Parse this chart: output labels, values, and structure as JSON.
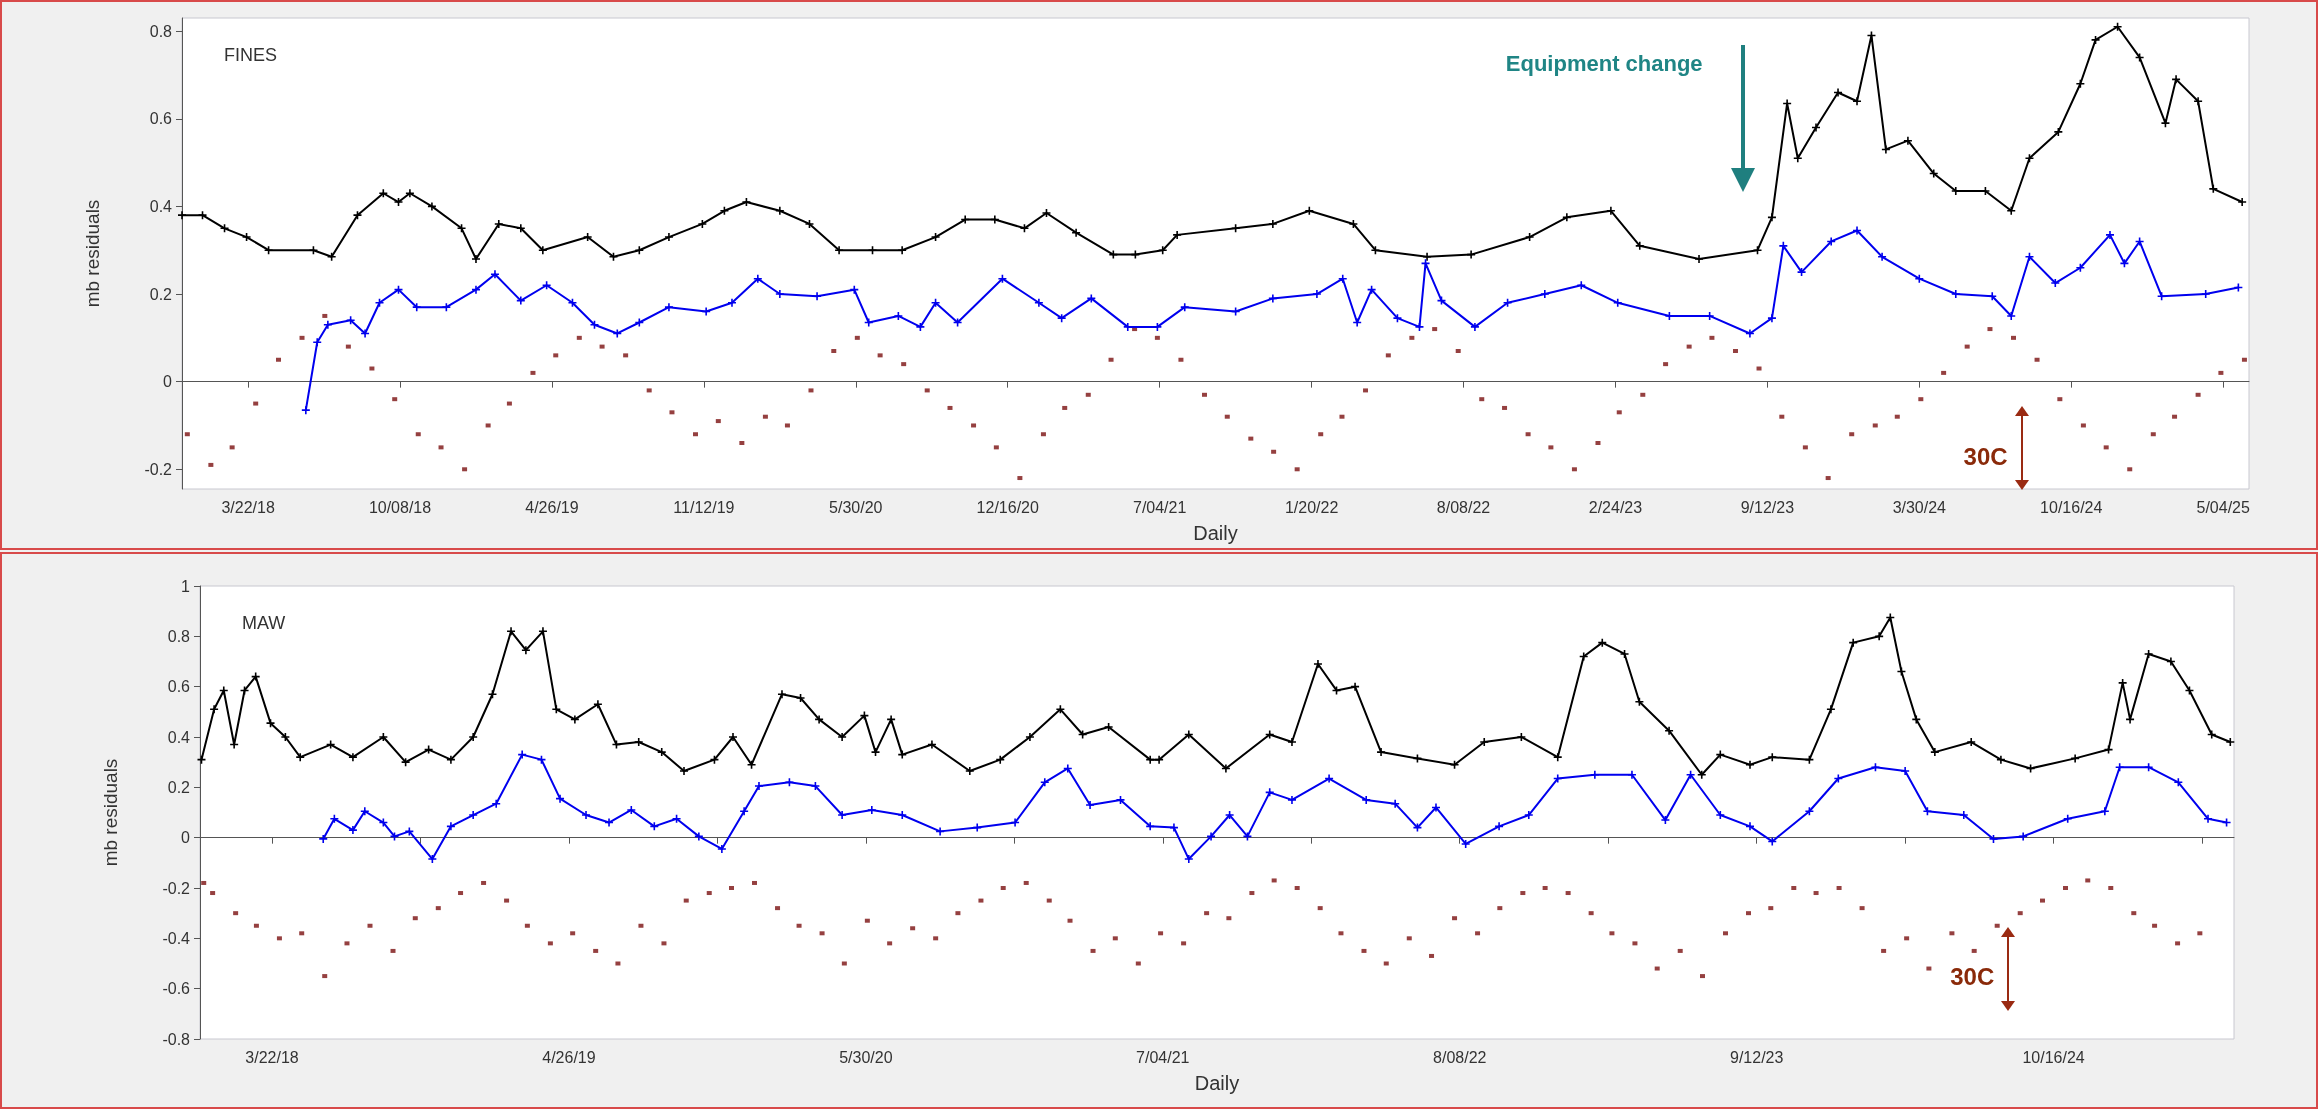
{
  "chart_data": [
    {
      "type": "line",
      "xlabel": "Daily",
      "ylabel": "mb residuals",
      "annotations": [
        "FINES",
        "Equipment change",
        "30C"
      ],
      "xlim": [
        "2017-12-25",
        "2025-06-07"
      ],
      "ylim": [
        -0.245,
        0.83
      ],
      "xticks": [
        {
          "value": "2018-03-22",
          "label": "3/22/18"
        },
        {
          "value": "2018-10-08",
          "label": "10/08/18"
        },
        {
          "value": "2019-04-26",
          "label": "4/26/19"
        },
        {
          "value": "2019-11-12",
          "label": "11/12/19"
        },
        {
          "value": "2020-05-30",
          "label": "5/30/20"
        },
        {
          "value": "2020-12-16",
          "label": "12/16/20"
        },
        {
          "value": "2021-07-04",
          "label": "7/04/21"
        },
        {
          "value": "2022-01-20",
          "label": "1/20/22"
        },
        {
          "value": "2022-08-08",
          "label": "8/08/22"
        },
        {
          "value": "2023-02-24",
          "label": "2/24/23"
        },
        {
          "value": "2023-09-12",
          "label": "9/12/23"
        },
        {
          "value": "2024-03-30",
          "label": "3/30/24"
        },
        {
          "value": "2024-10-16",
          "label": "10/16/24"
        },
        {
          "value": "2025-05-04",
          "label": "5/04/25"
        }
      ],
      "yticks": [
        -0.2,
        0,
        0.2,
        0.4,
        0.6,
        0.8
      ],
      "series": [
        {
          "marker": "cross",
          "color": "#000000",
          "x": [
            "2017-12-25",
            "2018-01-21",
            "2018-02-19",
            "2018-03-20",
            "2018-04-18",
            "2018-06-16",
            "2018-07-10",
            "2018-08-13",
            "2018-09-16",
            "2018-10-06",
            "2018-10-21",
            "2018-11-19",
            "2018-12-28",
            "2019-01-16",
            "2019-02-15",
            "2019-03-16",
            "2019-04-14",
            "2019-06-12",
            "2019-07-16",
            "2019-08-19",
            "2019-09-27",
            "2019-11-10",
            "2019-12-09",
            "2020-01-07",
            "2020-02-20",
            "2020-03-30",
            "2020-05-08",
            "2020-06-21",
            "2020-07-30",
            "2020-09-12",
            "2020-10-21",
            "2020-11-29",
            "2021-01-07",
            "2021-02-05",
            "2021-03-16",
            "2021-05-04",
            "2021-06-02",
            "2021-07-08",
            "2021-07-27",
            "2021-10-12",
            "2021-11-30",
            "2022-01-17",
            "2022-03-16",
            "2022-04-14",
            "2022-06-21",
            "2022-08-18",
            "2022-11-03",
            "2022-12-22",
            "2023-02-18",
            "2023-03-28",
            "2023-06-14",
            "2023-08-30",
            "2023-09-18",
            "2023-10-08",
            "2023-10-22",
            "2023-11-15",
            "2023-12-14",
            "2024-01-08",
            "2024-01-27",
            "2024-02-15",
            "2024-03-15",
            "2024-04-18",
            "2024-05-17",
            "2024-06-25",
            "2024-07-29",
            "2024-08-22",
            "2024-09-29",
            "2024-10-28",
            "2024-11-17",
            "2024-12-16",
            "2025-01-14",
            "2025-02-17",
            "2025-03-03",
            "2025-04-01",
            "2025-04-21",
            "2025-05-29"
          ],
          "values": [
            0.38,
            0.38,
            0.35,
            0.33,
            0.3,
            0.3,
            0.285,
            0.38,
            0.43,
            0.41,
            0.43,
            0.4,
            0.35,
            0.28,
            0.36,
            0.35,
            0.3,
            0.33,
            0.285,
            0.3,
            0.33,
            0.36,
            0.39,
            0.41,
            0.39,
            0.36,
            0.3,
            0.3,
            0.3,
            0.33,
            0.37,
            0.37,
            0.35,
            0.385,
            0.34,
            0.29,
            0.29,
            0.3,
            0.335,
            0.35,
            0.36,
            0.39,
            0.36,
            0.3,
            0.285,
            0.29,
            0.33,
            0.375,
            0.39,
            0.31,
            0.28,
            0.3,
            0.375,
            0.635,
            0.51,
            0.58,
            0.66,
            0.64,
            0.79,
            0.53,
            0.55,
            0.475,
            0.435,
            0.435,
            0.39,
            0.51,
            0.57,
            0.68,
            0.78,
            0.81,
            0.74,
            0.59,
            0.69,
            0.64,
            0.44,
            0.41
          ]
        },
        {
          "marker": "cross",
          "color": "#0000ee",
          "x": [
            "2018-06-06",
            "2018-06-21",
            "2018-07-05",
            "2018-08-04",
            "2018-08-23",
            "2018-09-11",
            "2018-10-06",
            "2018-10-30",
            "2018-12-08",
            "2019-01-16",
            "2019-02-10",
            "2019-03-16",
            "2019-04-19",
            "2019-05-23",
            "2019-06-21",
            "2019-07-21",
            "2019-08-19",
            "2019-09-27",
            "2019-11-15",
            "2019-12-19",
            "2020-01-22",
            "2020-02-20",
            "2020-04-09",
            "2020-05-28",
            "2020-06-16",
            "2020-07-25",
            "2020-08-23",
            "2020-09-12",
            "2020-10-11",
            "2020-12-09",
            "2021-01-26",
            "2021-02-25",
            "2021-04-05",
            "2021-05-23",
            "2021-07-01",
            "2021-08-06",
            "2021-10-12",
            "2021-11-30",
            "2022-01-27",
            "2022-03-02",
            "2022-03-21",
            "2022-04-09",
            "2022-05-13",
            "2022-06-11",
            "2022-06-19",
            "2022-07-10",
            "2022-08-23",
            "2022-10-05",
            "2022-11-23",
            "2023-01-10",
            "2023-02-27",
            "2023-05-06",
            "2023-06-28",
            "2023-08-20",
            "2023-09-18",
            "2023-10-03",
            "2023-10-27",
            "2023-12-05",
            "2024-01-08",
            "2024-02-10",
            "2024-03-30",
            "2024-05-17",
            "2024-07-04",
            "2024-07-29",
            "2024-08-22",
            "2024-09-25",
            "2024-10-28",
            "2024-12-06",
            "2024-12-25",
            "2025-01-14",
            "2025-02-12",
            "2025-04-11",
            "2025-05-24"
          ],
          "values": [
            -0.065,
            0.09,
            0.13,
            0.14,
            0.11,
            0.18,
            0.21,
            0.17,
            0.17,
            0.21,
            0.245,
            0.185,
            0.22,
            0.18,
            0.13,
            0.11,
            0.135,
            0.17,
            0.16,
            0.18,
            0.235,
            0.2,
            0.195,
            0.21,
            0.135,
            0.15,
            0.125,
            0.18,
            0.135,
            0.235,
            0.18,
            0.145,
            0.19,
            0.125,
            0.125,
            0.17,
            0.16,
            0.19,
            0.2,
            0.235,
            0.135,
            0.21,
            0.145,
            0.125,
            0.27,
            0.185,
            0.125,
            0.18,
            0.2,
            0.22,
            0.18,
            0.15,
            0.15,
            0.11,
            0.145,
            0.31,
            0.25,
            0.32,
            0.345,
            0.285,
            0.235,
            0.2,
            0.195,
            0.15,
            0.285,
            0.225,
            0.26,
            0.335,
            0.27,
            0.32,
            0.195,
            0.2,
            0.215
          ]
        },
        {
          "type": "scatter",
          "marker": "square",
          "color": "#7a1010",
          "x": [
            "2018-01-01",
            "2018-02-01",
            "2018-03-01",
            "2018-04-01",
            "2018-05-01",
            "2018-06-01",
            "2018-07-01",
            "2018-08-01",
            "2018-09-01",
            "2018-10-01",
            "2018-11-01",
            "2018-12-01",
            "2019-01-01",
            "2019-02-01",
            "2019-03-01",
            "2019-04-01",
            "2019-05-01",
            "2019-06-01",
            "2019-07-01",
            "2019-08-01",
            "2019-09-01",
            "2019-10-01",
            "2019-11-01",
            "2019-12-01",
            "2020-01-01",
            "2020-02-01",
            "2020-03-01",
            "2020-04-01",
            "2020-05-01",
            "2020-06-01",
            "2020-07-01",
            "2020-08-01",
            "2020-09-01",
            "2020-10-01",
            "2020-11-01",
            "2020-12-01",
            "2021-01-01",
            "2021-02-01",
            "2021-03-01",
            "2021-04-01",
            "2021-05-01",
            "2021-06-01",
            "2021-07-01",
            "2021-08-01",
            "2021-09-01",
            "2021-10-01",
            "2021-11-01",
            "2021-12-01",
            "2022-01-01",
            "2022-02-01",
            "2022-03-01",
            "2022-04-01",
            "2022-05-01",
            "2022-06-01",
            "2022-07-01",
            "2022-08-01",
            "2022-09-01",
            "2022-10-01",
            "2022-11-01",
            "2022-12-01",
            "2023-01-01",
            "2023-02-01",
            "2023-03-01",
            "2023-04-01",
            "2023-05-01",
            "2023-06-01",
            "2023-07-01",
            "2023-08-01",
            "2023-09-01",
            "2023-10-01",
            "2023-11-01",
            "2023-12-01",
            "2024-01-01",
            "2024-02-01",
            "2024-03-01",
            "2024-04-01",
            "2024-05-01",
            "2024-06-01",
            "2024-07-01",
            "2024-08-01",
            "2024-09-01",
            "2024-10-01",
            "2024-11-01",
            "2024-12-01",
            "2025-01-01",
            "2025-02-01",
            "2025-03-01",
            "2025-04-01",
            "2025-05-01",
            "2025-06-01"
          ],
          "values": [
            -0.12,
            -0.19,
            -0.15,
            -0.05,
            0.05,
            0.1,
            0.15,
            0.08,
            0.03,
            -0.04,
            -0.12,
            -0.15,
            -0.2,
            -0.1,
            -0.05,
            0.02,
            0.06,
            0.1,
            0.08,
            0.06,
            -0.02,
            -0.07,
            -0.12,
            -0.09,
            -0.14,
            -0.08,
            -0.1,
            -0.02,
            0.07,
            0.1,
            0.06,
            0.04,
            -0.02,
            -0.06,
            -0.1,
            -0.15,
            -0.22,
            -0.12,
            -0.06,
            -0.03,
            0.05,
            0.12,
            0.1,
            0.05,
            -0.03,
            -0.08,
            -0.13,
            -0.16,
            -0.2,
            -0.12,
            -0.08,
            -0.02,
            0.06,
            0.1,
            0.12,
            0.07,
            -0.04,
            -0.06,
            -0.12,
            -0.15,
            -0.2,
            -0.14,
            -0.07,
            -0.03,
            0.04,
            0.08,
            0.1,
            0.07,
            0.03,
            -0.08,
            -0.15,
            -0.22,
            -0.12,
            -0.1,
            -0.08,
            -0.04,
            0.02,
            0.08,
            0.12,
            0.1,
            0.05,
            -0.04,
            -0.1,
            -0.15,
            -0.2,
            -0.12,
            -0.08,
            -0.03,
            0.02,
            0.05
          ]
        }
      ]
    },
    {
      "type": "line",
      "xlabel": "Daily",
      "ylabel": "mb residuals",
      "annotations": [
        "MAW",
        "30C"
      ],
      "xlim": [
        "2017-12-15",
        "2025-06-16"
      ],
      "ylim": [
        -0.8,
        1
      ],
      "xticks": [
        {
          "value": "2018-03-22",
          "label": "3/22/18"
        },
        {
          "value": "2018-10-08",
          "label": null
        },
        {
          "value": "2019-04-26",
          "label": "4/26/19"
        },
        {
          "value": "2019-11-12",
          "label": null
        },
        {
          "value": "2020-05-30",
          "label": "5/30/20"
        },
        {
          "value": "2020-12-16",
          "label": null
        },
        {
          "value": "2021-07-04",
          "label": "7/04/21"
        },
        {
          "value": "2022-01-20",
          "label": null
        },
        {
          "value": "2022-08-08",
          "label": "8/08/22"
        },
        {
          "value": "2023-02-24",
          "label": null
        },
        {
          "value": "2023-09-12",
          "label": "9/12/23"
        },
        {
          "value": "2024-03-30",
          "label": null
        },
        {
          "value": "2024-10-16",
          "label": "10/16/24"
        },
        {
          "value": "2025-05-04",
          "label": null
        }
      ],
      "yticks": [
        -0.8,
        -0.6,
        -0.4,
        -0.2,
        0,
        0.2,
        0.4,
        0.6,
        0.8,
        1
      ],
      "series": [
        {
          "marker": "cross",
          "color": "#000000",
          "x": [
            "2017-12-17",
            "2018-01-03",
            "2018-01-16",
            "2018-01-30",
            "2018-02-13",
            "2018-02-28",
            "2018-03-20",
            "2018-04-09",
            "2018-04-29",
            "2018-06-09",
            "2018-07-09",
            "2018-08-19",
            "2018-09-18",
            "2018-10-19",
            "2018-11-18",
            "2018-12-18",
            "2019-01-13",
            "2019-02-07",
            "2019-02-27",
            "2019-03-22",
            "2019-04-09",
            "2019-05-04",
            "2019-06-04",
            "2019-06-29",
            "2019-07-29",
            "2019-08-29",
            "2019-09-28",
            "2019-11-08",
            "2019-12-03",
            "2019-12-28",
            "2020-02-07",
            "2020-03-03",
            "2020-03-28",
            "2020-04-28",
            "2020-05-28",
            "2020-06-12",
            "2020-07-03",
            "2020-07-18",
            "2020-08-27",
            "2020-10-17",
            "2020-11-27",
            "2021-01-06",
            "2021-02-16",
            "2021-03-18",
            "2021-04-22",
            "2021-06-17",
            "2021-06-29",
            "2021-08-08",
            "2021-09-27",
            "2021-11-25",
            "2021-12-25",
            "2022-01-29",
            "2022-02-23",
            "2022-03-20",
            "2022-04-24",
            "2022-06-12",
            "2022-08-01",
            "2022-09-10",
            "2022-10-30",
            "2022-12-18",
            "2023-01-22",
            "2023-02-16",
            "2023-03-18",
            "2023-04-07",
            "2023-05-17",
            "2023-06-30",
            "2023-07-25",
            "2023-09-03",
            "2023-10-03",
            "2023-11-22",
            "2023-12-21",
            "2024-01-20",
            "2024-02-24",
            "2024-03-10",
            "2024-03-25",
            "2024-04-14",
            "2024-05-09",
            "2024-06-27",
            "2024-08-06",
            "2024-09-15",
            "2024-11-14",
            "2024-12-29",
            "2025-01-17",
            "2025-01-27",
            "2025-02-21",
            "2025-03-23",
            "2025-04-17",
            "2025-05-17",
            "2025-06-11"
          ],
          "values": [
            0.31,
            0.51,
            0.585,
            0.37,
            0.585,
            0.64,
            0.455,
            0.4,
            0.32,
            0.37,
            0.32,
            0.4,
            0.3,
            0.35,
            0.31,
            0.4,
            0.57,
            0.82,
            0.745,
            0.82,
            0.51,
            0.47,
            0.53,
            0.37,
            0.38,
            0.34,
            0.265,
            0.31,
            0.4,
            0.29,
            0.57,
            0.555,
            0.47,
            0.4,
            0.485,
            0.34,
            0.47,
            0.33,
            0.37,
            0.265,
            0.31,
            0.4,
            0.51,
            0.41,
            0.44,
            0.31,
            0.31,
            0.41,
            0.275,
            0.41,
            0.38,
            0.69,
            0.585,
            0.6,
            0.34,
            0.315,
            0.29,
            0.38,
            0.4,
            0.32,
            0.72,
            0.775,
            0.73,
            0.54,
            0.425,
            0.25,
            0.33,
            0.29,
            0.32,
            0.31,
            0.51,
            0.775,
            0.8,
            0.875,
            0.66,
            0.47,
            0.34,
            0.38,
            0.31,
            0.275,
            0.315,
            0.35,
            0.615,
            0.47,
            0.73,
            0.7,
            0.585,
            0.41,
            0.38
          ]
        },
        {
          "marker": "cross",
          "color": "#0000ee",
          "x": [
            "2018-05-30",
            "2018-06-14",
            "2018-07-09",
            "2018-07-25",
            "2018-08-19",
            "2018-09-03",
            "2018-09-23",
            "2018-10-24",
            "2018-11-18",
            "2018-12-18",
            "2019-01-18",
            "2019-02-22",
            "2019-03-20",
            "2019-04-14",
            "2019-05-19",
            "2019-06-19",
            "2019-07-19",
            "2019-08-19",
            "2019-09-18",
            "2019-10-18",
            "2019-11-18",
            "2019-12-18",
            "2020-01-07",
            "2020-02-17",
            "2020-03-23",
            "2020-04-28",
            "2020-06-07",
            "2020-07-18",
            "2020-09-07",
            "2020-10-27",
            "2020-12-17",
            "2021-01-26",
            "2021-02-26",
            "2021-03-28",
            "2021-05-08",
            "2021-06-17",
            "2021-07-19",
            "2021-08-08",
            "2021-09-07",
            "2021-10-02",
            "2021-10-26",
            "2021-11-25",
            "2021-12-25",
            "2022-02-13",
            "2022-04-04",
            "2022-05-13",
            "2022-06-12",
            "2022-07-07",
            "2022-08-16",
            "2022-09-30",
            "2022-11-09",
            "2022-12-18",
            "2023-02-06",
            "2023-03-28",
            "2023-05-12",
            "2023-06-15",
            "2023-07-25",
            "2023-09-03",
            "2023-10-03",
            "2023-11-22",
            "2023-12-31",
            "2024-02-19",
            "2024-03-30",
            "2024-04-29",
            "2024-06-17",
            "2024-07-27",
            "2024-09-05",
            "2024-11-04",
            "2024-12-24",
            "2025-01-13",
            "2025-02-21",
            "2025-04-02",
            "2025-05-12",
            "2025-06-06"
          ],
          "values": [
            -0.005,
            0.075,
            0.03,
            0.105,
            0.06,
            0.005,
            0.025,
            -0.085,
            0.045,
            0.09,
            0.135,
            0.33,
            0.31,
            0.155,
            0.09,
            0.06,
            0.11,
            0.045,
            0.075,
            0.005,
            -0.045,
            0.105,
            0.205,
            0.22,
            0.205,
            0.09,
            0.11,
            0.09,
            0.025,
            0.04,
            0.06,
            0.22,
            0.275,
            0.13,
            0.15,
            0.045,
            0.04,
            -0.085,
            0.005,
            0.09,
            0.005,
            0.18,
            0.15,
            0.235,
            0.15,
            0.135,
            0.04,
            0.12,
            -0.025,
            0.045,
            0.09,
            0.235,
            0.25,
            0.25,
            0.07,
            0.25,
            0.09,
            0.045,
            -0.015,
            0.105,
            0.235,
            0.28,
            0.265,
            0.105,
            0.09,
            -0.005,
            0.005,
            0.075,
            0.105,
            0.28,
            0.28,
            0.22,
            0.075,
            0.06
          ]
        },
        {
          "type": "scatter",
          "marker": "square",
          "color": "#7a1010",
          "x": [
            "2017-12-20",
            "2018-01-01",
            "2018-02-01",
            "2018-03-01",
            "2018-04-01",
            "2018-05-01",
            "2018-06-01",
            "2018-07-01",
            "2018-08-01",
            "2018-09-01",
            "2018-10-01",
            "2018-11-01",
            "2018-12-01",
            "2019-01-01",
            "2019-02-01",
            "2019-03-01",
            "2019-04-01",
            "2019-05-01",
            "2019-06-01",
            "2019-07-01",
            "2019-08-01",
            "2019-09-01",
            "2019-10-01",
            "2019-11-01",
            "2019-12-01",
            "2020-01-01",
            "2020-02-01",
            "2020-03-01",
            "2020-04-01",
            "2020-05-01",
            "2020-06-01",
            "2020-07-01",
            "2020-08-01",
            "2020-09-01",
            "2020-10-01",
            "2020-11-01",
            "2020-12-01",
            "2021-01-01",
            "2021-02-01",
            "2021-03-01",
            "2021-04-01",
            "2021-05-01",
            "2021-06-01",
            "2021-07-01",
            "2021-08-01",
            "2021-09-01",
            "2021-10-01",
            "2021-11-01",
            "2021-12-01",
            "2022-01-01",
            "2022-02-01",
            "2022-03-01",
            "2022-04-01",
            "2022-05-01",
            "2022-06-01",
            "2022-07-01",
            "2022-08-01",
            "2022-09-01",
            "2022-10-01",
            "2022-11-01",
            "2022-12-01",
            "2023-01-01",
            "2023-02-01",
            "2023-03-01",
            "2023-04-01",
            "2023-05-01",
            "2023-06-01",
            "2023-07-01",
            "2023-08-01",
            "2023-09-01",
            "2023-10-01",
            "2023-11-01",
            "2023-12-01",
            "2024-01-01",
            "2024-02-01",
            "2024-03-01",
            "2024-04-01",
            "2024-05-01",
            "2024-06-01",
            "2024-07-01",
            "2024-08-01",
            "2024-09-01",
            "2024-10-01",
            "2024-11-01",
            "2024-12-01",
            "2025-01-01",
            "2025-02-01",
            "2025-03-01",
            "2025-04-01",
            "2025-05-01"
          ],
          "values": [
            -0.18,
            -0.22,
            -0.3,
            -0.35,
            -0.4,
            -0.38,
            -0.55,
            -0.42,
            -0.35,
            -0.45,
            -0.32,
            -0.28,
            -0.22,
            -0.18,
            -0.25,
            -0.35,
            -0.42,
            -0.38,
            -0.45,
            -0.5,
            -0.35,
            -0.42,
            -0.25,
            -0.22,
            -0.2,
            -0.18,
            -0.28,
            -0.35,
            -0.38,
            -0.5,
            -0.33,
            -0.42,
            -0.36,
            -0.4,
            -0.3,
            -0.25,
            -0.2,
            -0.18,
            -0.25,
            -0.33,
            -0.45,
            -0.4,
            -0.5,
            -0.38,
            -0.42,
            -0.3,
            -0.32,
            -0.22,
            -0.17,
            -0.2,
            -0.28,
            -0.38,
            -0.45,
            -0.5,
            -0.4,
            -0.47,
            -0.32,
            -0.38,
            -0.28,
            -0.22,
            -0.2,
            -0.22,
            -0.3,
            -0.38,
            -0.42,
            -0.52,
            -0.45,
            -0.55,
            -0.38,
            -0.3,
            -0.28,
            -0.2,
            -0.22,
            -0.2,
            -0.28,
            -0.45,
            -0.4,
            -0.52,
            -0.38,
            -0.45,
            -0.35,
            -0.3,
            -0.25,
            -0.2,
            -0.17,
            -0.2,
            -0.3,
            -0.35,
            -0.42,
            -0.38
          ]
        }
      ]
    }
  ]
}
